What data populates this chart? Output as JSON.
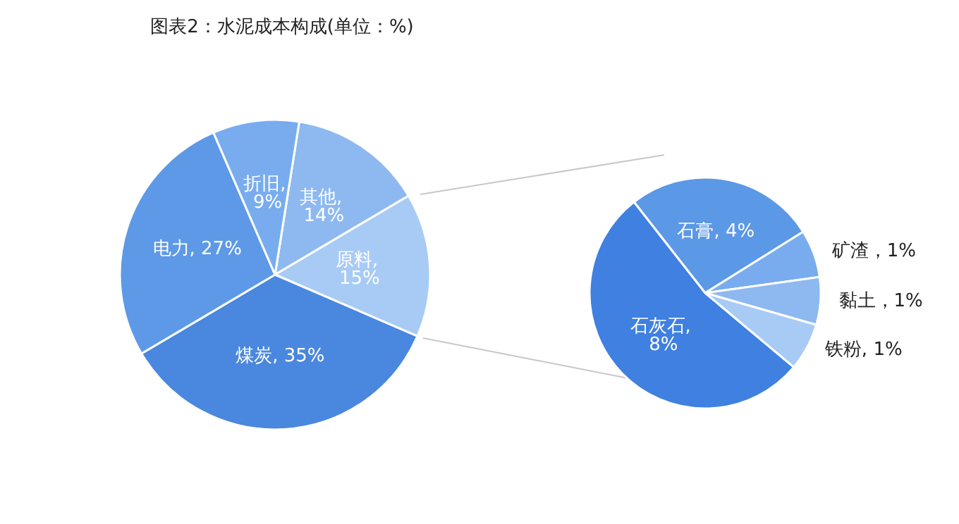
{
  "chart_data": [
    {
      "type": "pie",
      "title": "图表2：水泥成本构成(单位：%)",
      "categories": [
        "其他",
        "原料",
        "煤炭",
        "电力",
        "折旧"
      ],
      "values": [
        14,
        15,
        35,
        27,
        9
      ],
      "colors": [
        "#8db9f0",
        "#a8cbf5",
        "#4a87de",
        "#5d99e6",
        "#78acee"
      ],
      "value_labels": [
        ", 14%",
        ", 15%",
        ", 35%",
        ", 27%",
        ", 9%"
      ]
    },
    {
      "type": "pie",
      "categories": [
        "石膏",
        "矿渣",
        "黏土",
        "铁粉",
        "石灰石"
      ],
      "values": [
        4,
        1,
        1,
        1,
        8
      ],
      "colors": [
        "#5b98e6",
        "#78acee",
        "#8db9f0",
        "#a8cbf5",
        "#3f80e0"
      ],
      "value_labels": [
        ", 4%",
        "，1%",
        "，1%",
        ", 1%",
        ", 8%"
      ]
    }
  ]
}
